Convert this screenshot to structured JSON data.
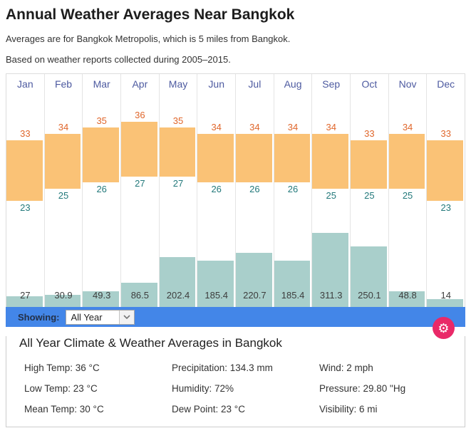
{
  "page": {
    "title": "Annual Weather Averages Near Bangkok",
    "subtitle1": "Averages are for Bangkok Metropolis, which is 5 miles from Bangkok.",
    "subtitle2": "Based on weather reports collected during 2005–2015."
  },
  "chart_data": {
    "type": "bar",
    "title": "Annual Weather Averages Near Bangkok",
    "categories": [
      "Jan",
      "Feb",
      "Mar",
      "Apr",
      "May",
      "Jun",
      "Jul",
      "Aug",
      "Sep",
      "Oct",
      "Nov",
      "Dec"
    ],
    "series": [
      {
        "name": "High Temp (°C)",
        "values": [
          33,
          34,
          35,
          36,
          35,
          34,
          34,
          34,
          34,
          33,
          34,
          33
        ],
        "label_color": "#e0662b"
      },
      {
        "name": "Low Temp (°C)",
        "values": [
          23,
          25,
          26,
          27,
          27,
          26,
          26,
          26,
          25,
          25,
          25,
          23
        ],
        "label_color": "#23797b"
      },
      {
        "name": "Precipitation (mm)",
        "values": [
          27,
          30.9,
          49.3,
          86.5,
          202.4,
          185.4,
          220.7,
          185.4,
          311.3,
          250.1,
          48.8,
          14
        ],
        "bar_color": "#a9cfcb"
      }
    ],
    "temp_bar_color": "#fac276",
    "month_label_color": "#4d5aa0",
    "legend": "none",
    "grid": "vertical-column-separators"
  },
  "toolbar": {
    "showing_label": "Showing:",
    "dropdown_value": "All Year",
    "bar_color": "#4386e8"
  },
  "settings_button": {
    "icon": "gear",
    "color": "#e92968"
  },
  "summary": {
    "heading": "All Year Climate & Weather Averages in Bangkok",
    "items": [
      {
        "label": "High Temp",
        "value": "36 °C"
      },
      {
        "label": "Low Temp",
        "value": "23 °C"
      },
      {
        "label": "Mean Temp",
        "value": "30 °C"
      },
      {
        "label": "Precipitation",
        "value": "134.3 mm"
      },
      {
        "label": "Humidity",
        "value": "72%"
      },
      {
        "label": "Dew Point",
        "value": "23 °C"
      },
      {
        "label": "Wind",
        "value": "2 mph"
      },
      {
        "label": "Pressure",
        "value": "29.80 \"Hg"
      },
      {
        "label": "Visibility",
        "value": "6 mi"
      }
    ]
  }
}
